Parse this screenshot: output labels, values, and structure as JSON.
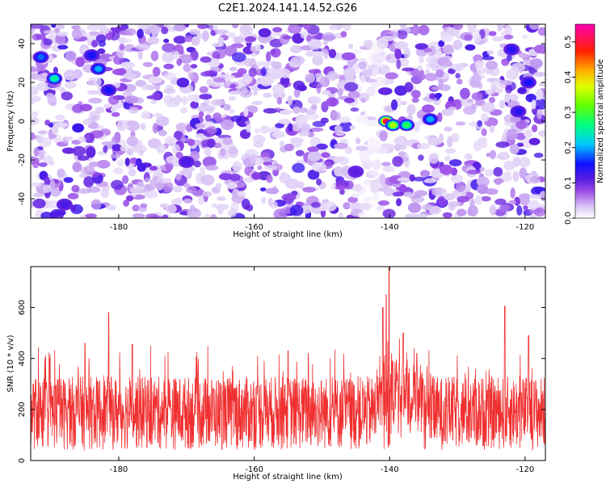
{
  "title": "C2E1.2024.141.14.52.G26",
  "chart_data": [
    {
      "type": "heatmap",
      "xlabel": "Height of straight line (km)",
      "ylabel": "Frequency (Hz)",
      "xlim": [
        -193,
        -117
      ],
      "ylim": [
        -50,
        50
      ],
      "xticks": [
        -180,
        -160,
        -140,
        -120
      ],
      "yticks": [
        -40,
        -20,
        0,
        20,
        40
      ],
      "colorbar": {
        "label": "Normalized spectral amplitude",
        "range": [
          0,
          0.55
        ],
        "ticks": [
          0.0,
          0.1,
          0.2,
          0.3,
          0.4,
          0.5
        ],
        "colors": [
          "#ffffff",
          "#c8a8f0",
          "#8a2be2",
          "#2020ff",
          "#00e0ff",
          "#00ff60",
          "#c8ff00",
          "#ffd000",
          "#ff4000",
          "#ff00aa"
        ]
      },
      "hotspots": [
        {
          "x": -140.5,
          "y": 0,
          "amp": 0.5
        },
        {
          "x": -139.5,
          "y": -2,
          "amp": 0.35
        },
        {
          "x": -137.5,
          "y": -2,
          "amp": 0.28
        },
        {
          "x": -134,
          "y": 1,
          "amp": 0.2
        },
        {
          "x": -189.5,
          "y": 22,
          "amp": 0.25
        },
        {
          "x": -191.5,
          "y": 33,
          "amp": 0.18
        },
        {
          "x": -183,
          "y": 27,
          "amp": 0.2
        },
        {
          "x": -184,
          "y": 34,
          "amp": 0.15
        },
        {
          "x": -181.5,
          "y": 16,
          "amp": 0.15
        },
        {
          "x": -119.5,
          "y": 20,
          "amp": 0.15
        },
        {
          "x": -121,
          "y": 5,
          "amp": 0.14
        },
        {
          "x": -188,
          "y": -43,
          "amp": 0.12
        },
        {
          "x": -170,
          "y": -21,
          "amp": 0.12
        },
        {
          "x": -122,
          "y": 37,
          "amp": 0.14
        },
        {
          "x": -145,
          "y": -26,
          "amp": 0.11
        }
      ]
    },
    {
      "type": "line",
      "xlabel": "Height of straight line (km)",
      "ylabel": "SNR (10 * v/v)",
      "xlim": [
        -193,
        -117
      ],
      "ylim": [
        0,
        760
      ],
      "xticks": [
        -180,
        -160,
        -140,
        -120
      ],
      "yticks": [
        0,
        200,
        400,
        600
      ],
      "color": "#f03030",
      "baseline_mean": 175,
      "noise_range": [
        40,
        330
      ],
      "peaks": [
        {
          "x": -140.1,
          "y": 760
        },
        {
          "x": -140.5,
          "y": 650
        },
        {
          "x": -141,
          "y": 600
        },
        {
          "x": -181.5,
          "y": 580
        },
        {
          "x": -123,
          "y": 605
        },
        {
          "x": -185,
          "y": 460
        },
        {
          "x": -178,
          "y": 455
        },
        {
          "x": -119.5,
          "y": 490
        },
        {
          "x": -138,
          "y": 500
        },
        {
          "x": -136,
          "y": 420
        },
        {
          "x": -152,
          "y": 420
        },
        {
          "x": -155,
          "y": 430
        }
      ],
      "dip": {
        "x": -140.1,
        "y": 50
      }
    }
  ]
}
